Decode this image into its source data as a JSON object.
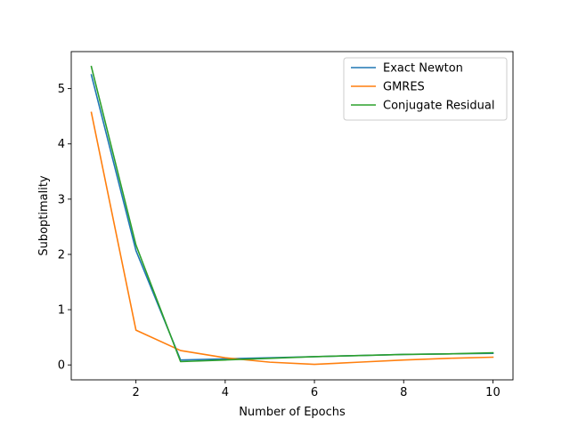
{
  "chart_data": {
    "type": "line",
    "xlabel": "Number of Epochs",
    "ylabel": "Suboptimality",
    "xlim": [
      0.55,
      10.45
    ],
    "ylim": [
      -0.27,
      5.67
    ],
    "xticks": [
      2,
      4,
      6,
      8,
      10
    ],
    "yticks": [
      0,
      1,
      2,
      3,
      4,
      5
    ],
    "grid": false,
    "legend_position": "top-right",
    "x": [
      1,
      2,
      3,
      4,
      5,
      6,
      7,
      8,
      9,
      10
    ],
    "series": [
      {
        "name": "Exact Newton",
        "color": "#1f77b4",
        "values": [
          5.25,
          2.07,
          0.09,
          0.11,
          0.13,
          0.15,
          0.17,
          0.19,
          0.2,
          0.21
        ]
      },
      {
        "name": "GMRES",
        "color": "#ff7f0e",
        "values": [
          4.57,
          0.63,
          0.26,
          0.13,
          0.05,
          0.01,
          0.05,
          0.09,
          0.12,
          0.14
        ]
      },
      {
        "name": "Conjugate Residual",
        "color": "#2ca02c",
        "values": [
          5.4,
          2.17,
          0.06,
          0.09,
          0.12,
          0.15,
          0.17,
          0.19,
          0.2,
          0.22
        ]
      }
    ]
  }
}
